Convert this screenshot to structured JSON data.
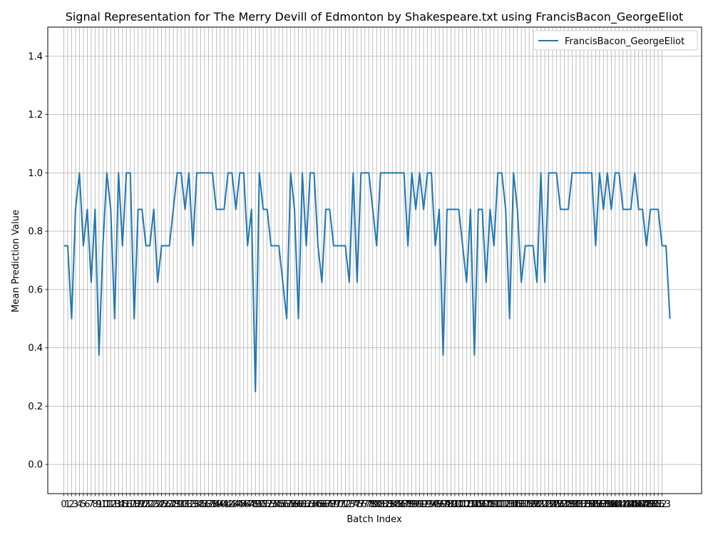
{
  "chart_data": {
    "type": "line",
    "title": "Signal Representation for The Merry Devill of Edmonton by Shakespeare.txt using FrancisBacon_GeorgeEliot",
    "xlabel": "Batch Index",
    "ylabel": "Mean Prediction Value",
    "xlim": [
      -4.1,
      163.1
    ],
    "ylim": [
      -0.1,
      1.5
    ],
    "yticks": [
      0.0,
      0.2,
      0.4,
      0.6,
      0.8,
      1.0,
      1.2,
      1.4
    ],
    "ytick_labels": [
      "0.0",
      "0.2",
      "0.4",
      "0.6",
      "0.8",
      "1.0",
      "1.2",
      "1.4"
    ],
    "xticks_start": 0,
    "xticks_end": 153,
    "grid": true,
    "legend_position": "top-right",
    "series": [
      {
        "name": "FrancisBacon_GeorgeEliot",
        "color": "#1f77b4",
        "x_start": 0,
        "values": [
          0.75,
          0.75,
          0.5,
          0.875,
          1.0,
          0.75,
          0.875,
          0.625,
          0.875,
          0.375,
          0.75,
          1.0,
          0.875,
          0.5,
          1.0,
          0.75,
          1.0,
          1.0,
          0.5,
          0.875,
          0.875,
          0.75,
          0.75,
          0.875,
          0.625,
          0.75,
          0.75,
          0.75,
          0.875,
          1.0,
          1.0,
          0.875,
          1.0,
          0.75,
          1.0,
          1.0,
          1.0,
          1.0,
          1.0,
          0.875,
          0.875,
          0.875,
          1.0,
          1.0,
          0.875,
          1.0,
          1.0,
          0.75,
          0.875,
          0.25,
          1.0,
          0.875,
          0.875,
          0.75,
          0.75,
          0.75,
          0.625,
          0.5,
          1.0,
          0.875,
          0.5,
          1.0,
          0.75,
          1.0,
          1.0,
          0.75,
          0.625,
          0.875,
          0.875,
          0.75,
          0.75,
          0.75,
          0.75,
          0.625,
          1.0,
          0.625,
          1.0,
          1.0,
          1.0,
          0.875,
          0.75,
          1.0,
          1.0,
          1.0,
          1.0,
          1.0,
          1.0,
          1.0,
          0.75,
          1.0,
          0.875,
          1.0,
          0.875,
          1.0,
          1.0,
          0.75,
          0.875,
          0.375,
          0.875,
          0.875,
          0.875,
          0.875,
          0.75,
          0.625,
          0.875,
          0.375,
          0.875,
          0.875,
          0.625,
          0.875,
          0.75,
          1.0,
          1.0,
          0.875,
          0.5,
          1.0,
          0.875,
          0.625,
          0.75,
          0.75,
          0.75,
          0.625,
          1.0,
          0.625,
          1.0,
          1.0,
          1.0,
          0.875,
          0.875,
          0.875,
          1.0,
          1.0,
          1.0,
          1.0,
          1.0,
          1.0,
          0.75,
          1.0,
          0.875,
          1.0,
          0.875,
          1.0,
          1.0,
          0.875,
          0.875,
          0.875,
          1.0,
          0.875,
          0.875,
          0.75,
          0.875,
          0.875,
          0.875,
          0.75,
          0.75,
          0.5
        ]
      }
    ]
  }
}
